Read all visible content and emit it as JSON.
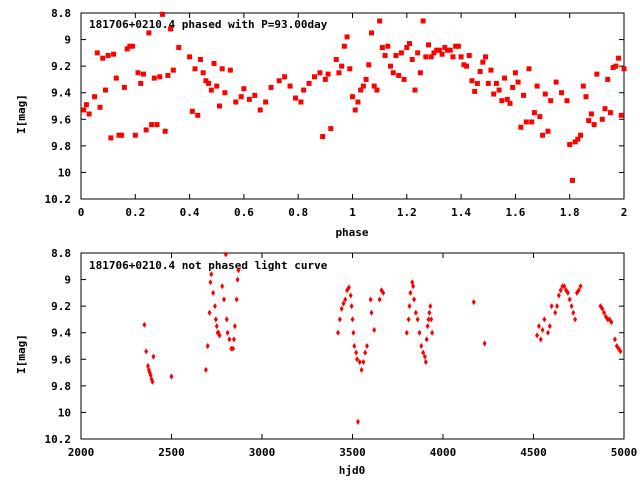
{
  "chart_data": [
    {
      "type": "scatter",
      "title": "181706+0210.4 phased with P=93.00day",
      "xlabel": "phase",
      "ylabel": "I[mag]",
      "xlim": [
        0,
        2
      ],
      "ylim": [
        8.8,
        10.2
      ],
      "y_inverted": true,
      "x_ticks": [
        "0",
        "0.2",
        "0.4",
        "0.6",
        "0.8",
        "1",
        "1.2",
        "1.4",
        "1.6",
        "1.8",
        "2"
      ],
      "x_tick_values": [
        0,
        0.2,
        0.4,
        0.6,
        0.8,
        1.0,
        1.2,
        1.4,
        1.6,
        1.8,
        2.0
      ],
      "y_ticks": [
        "8.8",
        "9",
        "9.2",
        "9.4",
        "9.6",
        "9.8",
        "10",
        "10.2"
      ],
      "y_tick_values": [
        8.8,
        9.0,
        9.2,
        9.4,
        9.6,
        9.8,
        10.0,
        10.2
      ],
      "grid": false,
      "marker_color": "#ff0000",
      "points": [
        [
          0.01,
          9.53
        ],
        [
          0.02,
          9.49
        ],
        [
          0.03,
          9.56
        ],
        [
          0.05,
          9.43
        ],
        [
          0.06,
          9.1
        ],
        [
          0.07,
          9.51
        ],
        [
          0.08,
          9.14
        ],
        [
          0.09,
          9.38
        ],
        [
          0.1,
          9.12
        ],
        [
          0.11,
          9.74
        ],
        [
          0.12,
          9.11
        ],
        [
          0.13,
          9.29
        ],
        [
          0.14,
          9.72
        ],
        [
          0.15,
          9.72
        ],
        [
          0.16,
          9.36
        ],
        [
          0.17,
          9.07
        ],
        [
          0.18,
          9.05
        ],
        [
          0.19,
          9.05
        ],
        [
          0.2,
          9.72
        ],
        [
          0.21,
          9.25
        ],
        [
          0.22,
          9.33
        ],
        [
          0.23,
          9.26
        ],
        [
          0.24,
          9.68
        ],
        [
          0.25,
          8.95
        ],
        [
          0.26,
          9.64
        ],
        [
          0.27,
          9.29
        ],
        [
          0.28,
          9.64
        ],
        [
          0.29,
          9.28
        ],
        [
          0.3,
          8.81
        ],
        [
          0.31,
          9.69
        ],
        [
          0.32,
          9.27
        ],
        [
          0.33,
          8.92
        ],
        [
          0.34,
          9.23
        ],
        [
          0.36,
          9.06
        ],
        [
          0.4,
          9.13
        ],
        [
          0.41,
          9.54
        ],
        [
          0.42,
          9.22
        ],
        [
          0.43,
          9.57
        ],
        [
          0.44,
          9.15
        ],
        [
          0.45,
          9.25
        ],
        [
          0.46,
          9.31
        ],
        [
          0.47,
          9.33
        ],
        [
          0.48,
          9.38
        ],
        [
          0.49,
          9.18
        ],
        [
          0.5,
          9.35
        ],
        [
          0.51,
          9.5
        ],
        [
          0.52,
          9.22
        ],
        [
          0.53,
          9.4
        ],
        [
          0.55,
          9.23
        ],
        [
          0.57,
          9.47
        ],
        [
          0.59,
          9.43
        ],
        [
          0.6,
          9.37
        ],
        [
          0.62,
          9.45
        ],
        [
          0.64,
          9.42
        ],
        [
          0.66,
          9.53
        ],
        [
          0.68,
          9.47
        ],
        [
          0.7,
          9.36
        ],
        [
          0.73,
          9.31
        ],
        [
          0.75,
          9.28
        ],
        [
          0.77,
          9.35
        ],
        [
          0.79,
          9.44
        ],
        [
          0.81,
          9.47
        ],
        [
          0.82,
          9.38
        ],
        [
          0.84,
          9.33
        ],
        [
          0.86,
          9.28
        ],
        [
          0.88,
          9.25
        ],
        [
          0.89,
          9.73
        ],
        [
          0.9,
          9.3
        ],
        [
          0.91,
          9.26
        ],
        [
          0.92,
          9.67
        ],
        [
          0.94,
          9.15
        ],
        [
          0.95,
          9.25
        ],
        [
          0.96,
          9.2
        ],
        [
          0.97,
          9.05
        ],
        [
          0.98,
          8.98
        ],
        [
          0.99,
          9.22
        ],
        [
          1.0,
          9.43
        ],
        [
          1.01,
          9.53
        ],
        [
          1.02,
          9.47
        ],
        [
          1.03,
          9.38
        ],
        [
          1.04,
          9.35
        ],
        [
          1.05,
          9.3
        ],
        [
          1.06,
          9.19
        ],
        [
          1.07,
          8.95
        ],
        [
          1.08,
          9.35
        ],
        [
          1.09,
          9.38
        ],
        [
          1.1,
          8.86
        ],
        [
          1.11,
          9.06
        ],
        [
          1.12,
          9.12
        ],
        [
          1.13,
          9.05
        ],
        [
          1.14,
          9.2
        ],
        [
          1.15,
          9.25
        ],
        [
          1.16,
          9.12
        ],
        [
          1.17,
          9.27
        ],
        [
          1.18,
          9.1
        ],
        [
          1.19,
          9.3
        ],
        [
          1.2,
          9.06
        ],
        [
          1.21,
          9.03
        ],
        [
          1.22,
          9.15
        ],
        [
          1.23,
          9.38
        ],
        [
          1.24,
          9.1
        ],
        [
          1.25,
          9.25
        ],
        [
          1.26,
          8.86
        ],
        [
          1.27,
          9.13
        ],
        [
          1.28,
          9.04
        ],
        [
          1.29,
          9.13
        ],
        [
          1.3,
          9.1
        ],
        [
          1.31,
          9.08
        ],
        [
          1.32,
          9.08
        ],
        [
          1.33,
          9.11
        ],
        [
          1.34,
          9.06
        ],
        [
          1.35,
          9.08
        ],
        [
          1.36,
          9.08
        ],
        [
          1.37,
          9.13
        ],
        [
          1.38,
          9.05
        ],
        [
          1.39,
          9.05
        ],
        [
          1.4,
          9.13
        ],
        [
          1.41,
          9.19
        ],
        [
          1.42,
          9.2
        ],
        [
          1.43,
          9.12
        ],
        [
          1.44,
          9.31
        ],
        [
          1.45,
          9.39
        ],
        [
          1.46,
          9.33
        ],
        [
          1.47,
          9.24
        ],
        [
          1.48,
          9.17
        ],
        [
          1.49,
          9.13
        ],
        [
          1.5,
          9.33
        ],
        [
          1.51,
          9.23
        ],
        [
          1.52,
          9.41
        ],
        [
          1.53,
          9.33
        ],
        [
          1.54,
          9.38
        ],
        [
          1.55,
          9.46
        ],
        [
          1.56,
          9.29
        ],
        [
          1.57,
          9.45
        ],
        [
          1.58,
          9.48
        ],
        [
          1.59,
          9.36
        ],
        [
          1.6,
          9.25
        ],
        [
          1.61,
          9.32
        ],
        [
          1.62,
          9.66
        ],
        [
          1.63,
          9.42
        ],
        [
          1.64,
          9.62
        ],
        [
          1.65,
          9.22
        ],
        [
          1.66,
          9.62
        ],
        [
          1.67,
          9.55
        ],
        [
          1.68,
          9.35
        ],
        [
          1.69,
          9.58
        ],
        [
          1.7,
          9.72
        ],
        [
          1.71,
          9.41
        ],
        [
          1.72,
          9.69
        ],
        [
          1.73,
          9.46
        ],
        [
          1.75,
          9.32
        ],
        [
          1.77,
          9.4
        ],
        [
          1.79,
          9.46
        ],
        [
          1.8,
          9.79
        ],
        [
          1.81,
          10.06
        ],
        [
          1.82,
          9.77
        ],
        [
          1.83,
          9.75
        ],
        [
          1.84,
          9.72
        ],
        [
          1.85,
          9.35
        ],
        [
          1.86,
          9.43
        ],
        [
          1.87,
          9.61
        ],
        [
          1.88,
          9.56
        ],
        [
          1.89,
          9.64
        ],
        [
          1.9,
          9.26
        ],
        [
          1.92,
          9.6
        ],
        [
          1.93,
          9.52
        ],
        [
          1.94,
          9.3
        ],
        [
          1.95,
          9.55
        ],
        [
          1.96,
          9.21
        ],
        [
          1.97,
          9.2
        ],
        [
          1.98,
          9.14
        ],
        [
          1.99,
          9.57
        ],
        [
          2.0,
          9.22
        ]
      ]
    },
    {
      "type": "scatter",
      "title": "181706+0210.4 not phased light curve",
      "xlabel": "hjd0",
      "ylabel": "I[mag]",
      "xlim": [
        2000,
        5000
      ],
      "ylim": [
        8.8,
        10.2
      ],
      "y_inverted": true,
      "x_ticks": [
        "2000",
        "2500",
        "3000",
        "3500",
        "4000",
        "4500",
        "5000"
      ],
      "x_tick_values": [
        2000,
        2500,
        3000,
        3500,
        4000,
        4500,
        5000
      ],
      "y_ticks": [
        "8.8",
        "9",
        "9.2",
        "9.4",
        "9.6",
        "9.8",
        "10",
        "10.2"
      ],
      "y_tick_values": [
        8.8,
        9.0,
        9.2,
        9.4,
        9.6,
        9.8,
        10.0,
        10.2
      ],
      "grid": false,
      "marker_color": "#ff0000",
      "points": [
        [
          2350,
          9.34
        ],
        [
          2360,
          9.54
        ],
        [
          2370,
          9.65
        ],
        [
          2375,
          9.68
        ],
        [
          2380,
          9.7
        ],
        [
          2385,
          9.72
        ],
        [
          2390,
          9.75
        ],
        [
          2395,
          9.77
        ],
        [
          2400,
          9.58
        ],
        [
          2500,
          9.73
        ],
        [
          2690,
          9.68
        ],
        [
          2700,
          9.5
        ],
        [
          2710,
          9.25
        ],
        [
          2715,
          9.02
        ],
        [
          2720,
          8.96
        ],
        [
          2730,
          9.1
        ],
        [
          2740,
          9.2
        ],
        [
          2745,
          9.3
        ],
        [
          2750,
          9.35
        ],
        [
          2755,
          9.4
        ],
        [
          2760,
          9.4
        ],
        [
          2765,
          9.42
        ],
        [
          2780,
          9.05
        ],
        [
          2790,
          9.15
        ],
        [
          2800,
          8.81
        ],
        [
          2805,
          9.3
        ],
        [
          2810,
          9.4
        ],
        [
          2820,
          9.45
        ],
        [
          2830,
          9.52
        ],
        [
          2840,
          9.52
        ],
        [
          2845,
          9.45
        ],
        [
          2850,
          9.35
        ],
        [
          2860,
          9.15
        ],
        [
          2865,
          9.0
        ],
        [
          2870,
          8.93
        ],
        [
          3420,
          9.4
        ],
        [
          3430,
          9.3
        ],
        [
          3440,
          9.22
        ],
        [
          3450,
          9.18
        ],
        [
          3460,
          9.15
        ],
        [
          3470,
          9.08
        ],
        [
          3480,
          9.06
        ],
        [
          3490,
          9.12
        ],
        [
          3495,
          9.2
        ],
        [
          3500,
          9.3
        ],
        [
          3505,
          9.4
        ],
        [
          3510,
          9.5
        ],
        [
          3520,
          9.55
        ],
        [
          3525,
          9.6
        ],
        [
          3530,
          10.07
        ],
        [
          3540,
          9.62
        ],
        [
          3550,
          9.68
        ],
        [
          3560,
          9.62
        ],
        [
          3570,
          9.55
        ],
        [
          3580,
          9.5
        ],
        [
          3600,
          9.15
        ],
        [
          3605,
          9.25
        ],
        [
          3620,
          9.38
        ],
        [
          3650,
          9.15
        ],
        [
          3660,
          9.08
        ],
        [
          3670,
          9.1
        ],
        [
          3800,
          9.4
        ],
        [
          3810,
          9.3
        ],
        [
          3815,
          9.2
        ],
        [
          3820,
          9.1
        ],
        [
          3830,
          9.02
        ],
        [
          3835,
          9.05
        ],
        [
          3840,
          9.15
        ],
        [
          3850,
          9.25
        ],
        [
          3860,
          9.3
        ],
        [
          3870,
          9.4
        ],
        [
          3880,
          9.5
        ],
        [
          3890,
          9.55
        ],
        [
          3900,
          9.58
        ],
        [
          3905,
          9.62
        ],
        [
          3910,
          9.45
        ],
        [
          3915,
          9.35
        ],
        [
          3920,
          9.3
        ],
        [
          3925,
          9.25
        ],
        [
          3930,
          9.2
        ],
        [
          3935,
          9.3
        ],
        [
          3940,
          9.4
        ],
        [
          4170,
          9.17
        ],
        [
          4230,
          9.48
        ],
        [
          4520,
          9.42
        ],
        [
          4530,
          9.35
        ],
        [
          4540,
          9.45
        ],
        [
          4550,
          9.38
        ],
        [
          4560,
          9.3
        ],
        [
          4580,
          9.4
        ],
        [
          4590,
          9.35
        ],
        [
          4600,
          9.2
        ],
        [
          4620,
          9.25
        ],
        [
          4630,
          9.2
        ],
        [
          4640,
          9.12
        ],
        [
          4650,
          9.08
        ],
        [
          4660,
          9.05
        ],
        [
          4670,
          9.05
        ],
        [
          4680,
          9.08
        ],
        [
          4690,
          9.1
        ],
        [
          4700,
          9.15
        ],
        [
          4710,
          9.2
        ],
        [
          4720,
          9.25
        ],
        [
          4730,
          9.3
        ],
        [
          4740,
          9.1
        ],
        [
          4750,
          9.08
        ],
        [
          4760,
          9.05
        ],
        [
          4870,
          9.2
        ],
        [
          4880,
          9.22
        ],
        [
          4890,
          9.25
        ],
        [
          4900,
          9.28
        ],
        [
          4910,
          9.3
        ],
        [
          4920,
          9.3
        ],
        [
          4930,
          9.32
        ],
        [
          4950,
          9.45
        ],
        [
          4960,
          9.5
        ],
        [
          4970,
          9.52
        ],
        [
          4980,
          9.54
        ]
      ]
    }
  ]
}
